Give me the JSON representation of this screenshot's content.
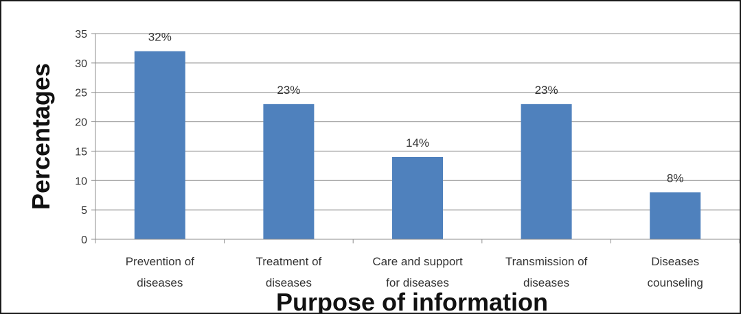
{
  "chart_data": {
    "type": "bar",
    "categories": [
      [
        "Prevention of",
        "diseases"
      ],
      [
        "Treatment of",
        "diseases"
      ],
      [
        "Care and support",
        "for diseases"
      ],
      [
        "Transmission of",
        "diseases"
      ],
      [
        "Diseases",
        "counseling"
      ]
    ],
    "values": [
      32,
      23,
      14,
      23,
      8
    ],
    "data_labels": [
      "32%",
      "23%",
      "14%",
      "23%",
      "8%"
    ],
    "xlabel": "Purpose of information",
    "ylabel": "Percentages",
    "ylim": [
      0,
      35
    ],
    "yticks": [
      0,
      5,
      10,
      15,
      20,
      25,
      30,
      35
    ],
    "grid": true,
    "bar_color": "#4f81bd",
    "grid_color": "#8c8c8c"
  }
}
